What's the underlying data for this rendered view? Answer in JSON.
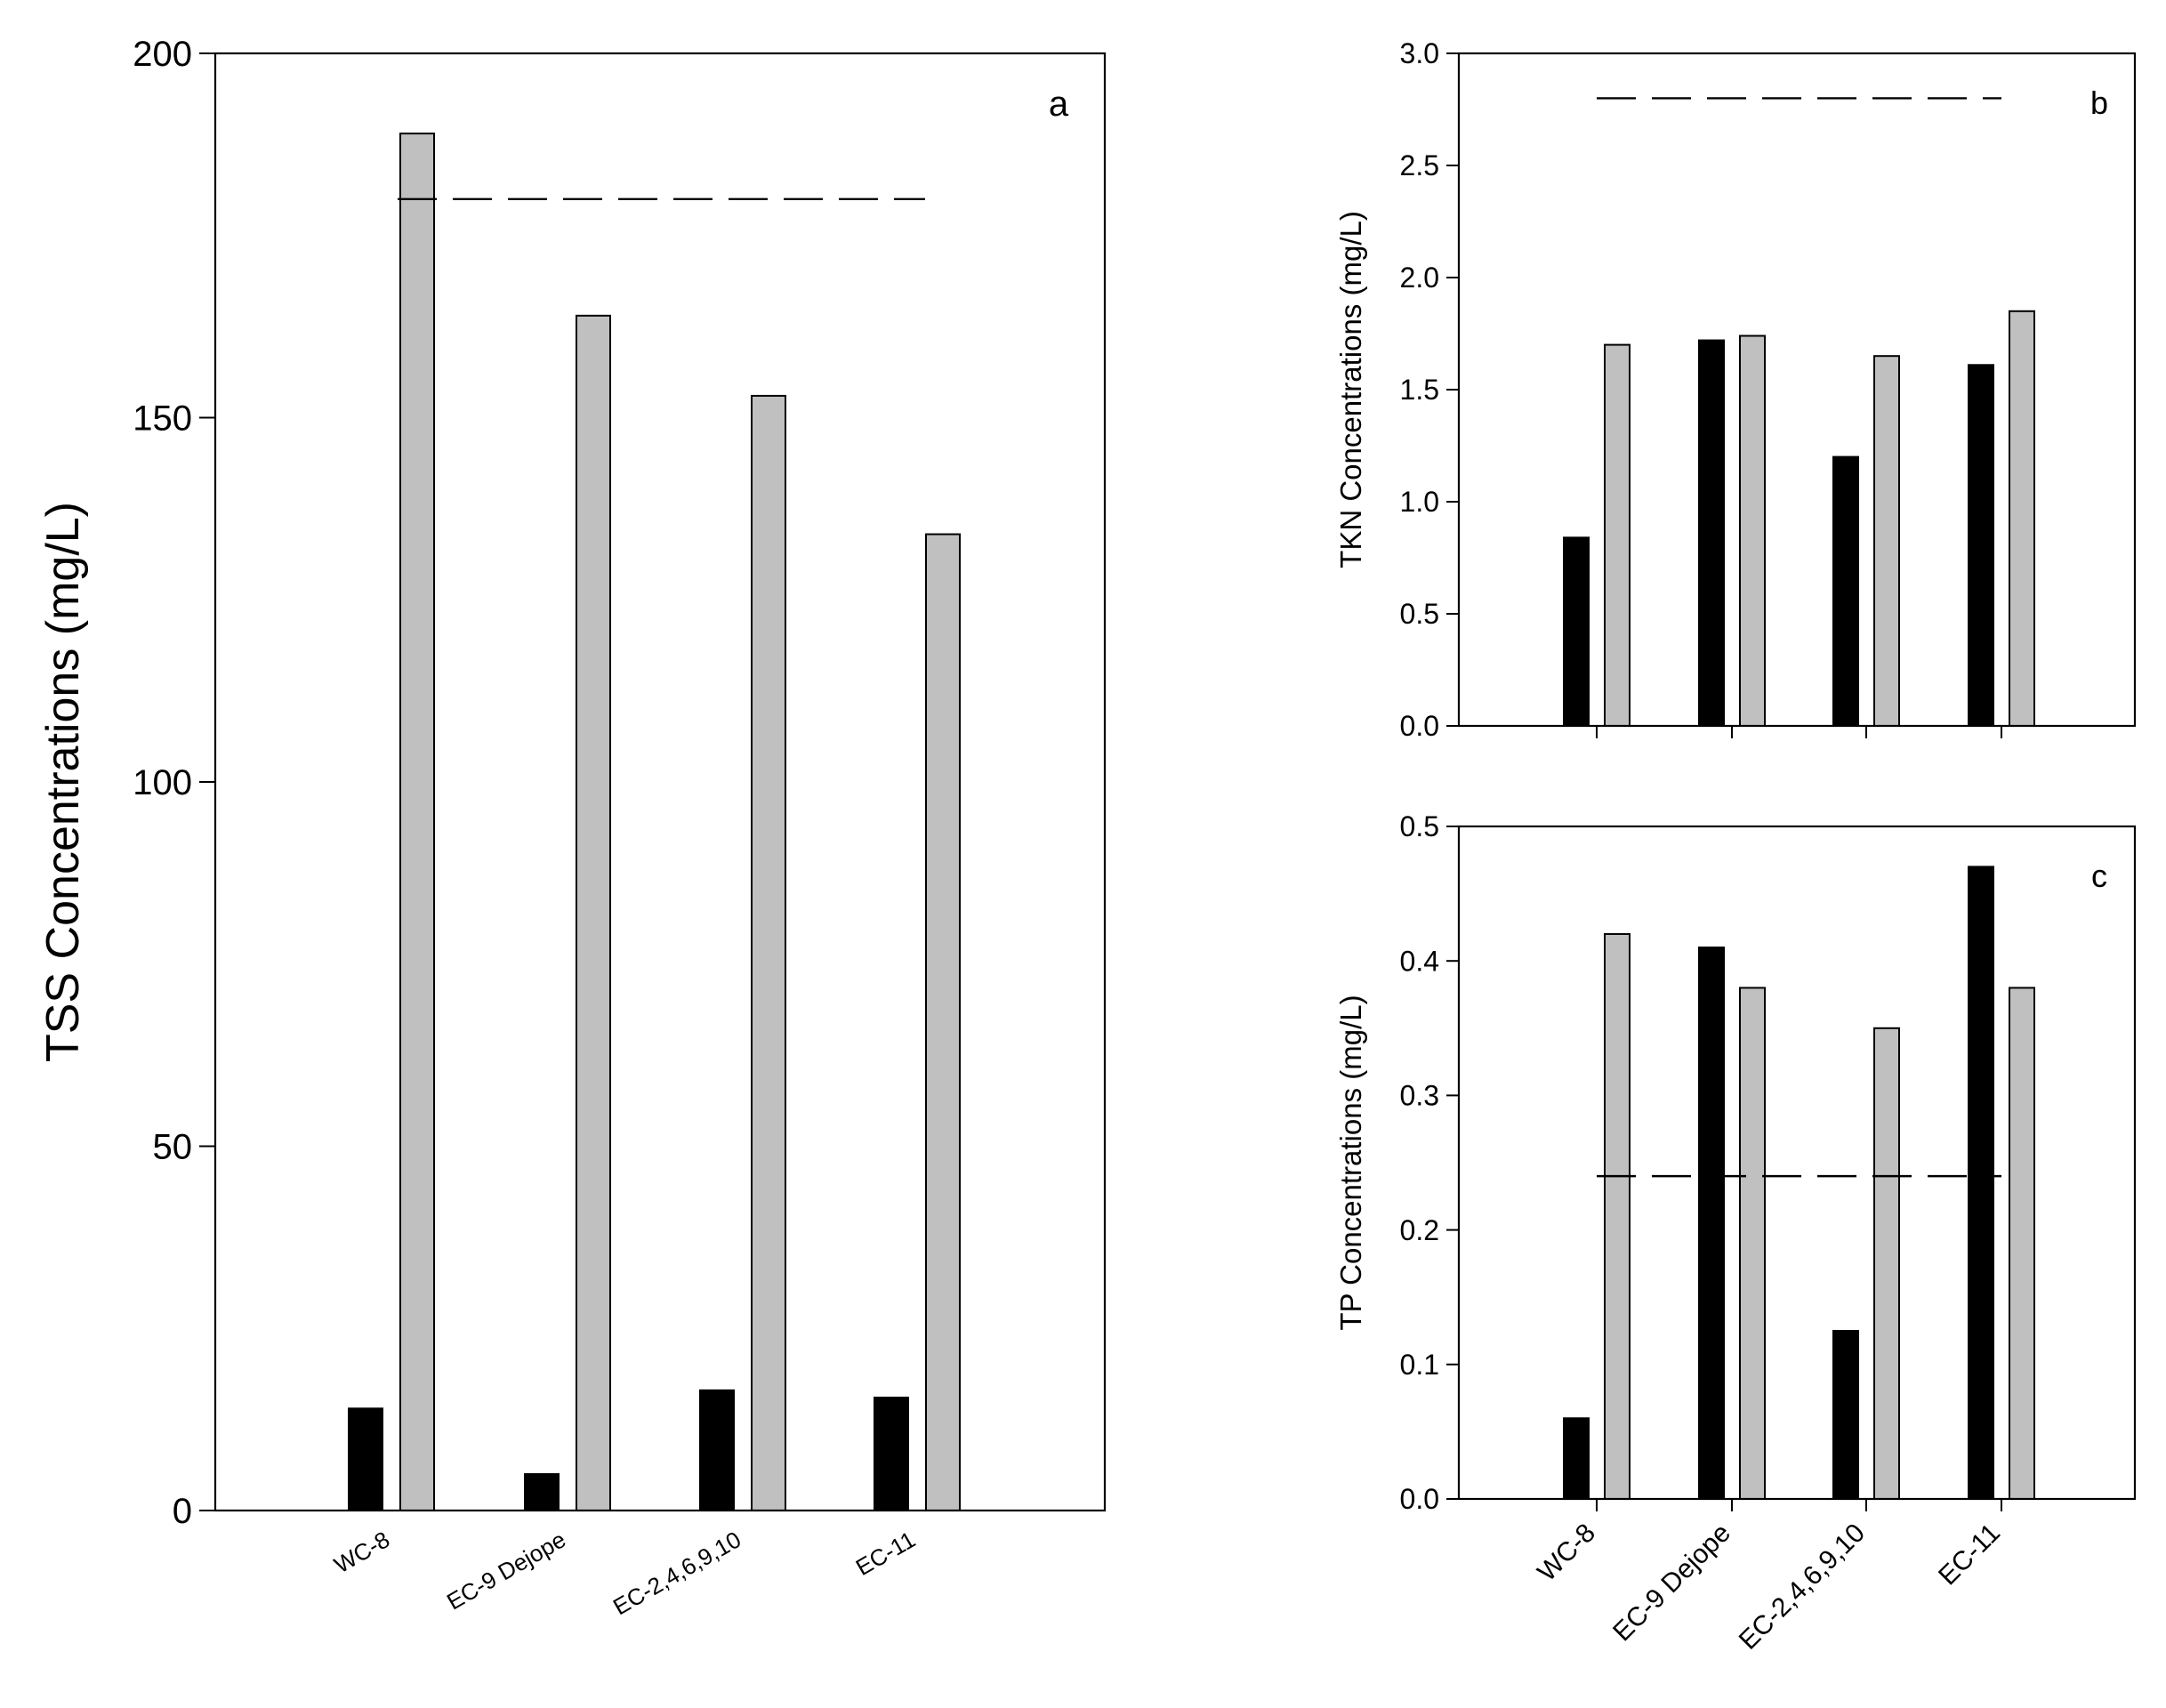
{
  "chart_data": [
    {
      "panel_id": "a",
      "type": "bar",
      "panel_label": "a",
      "categories": [
        "WC-8",
        "EC-9 Dejope",
        "EC-2,4,6,9,10",
        "EC-11"
      ],
      "series": [
        {
          "color": "#000000",
          "values": [
            14,
            5,
            16.5,
            15.5
          ]
        },
        {
          "color": "#c0c0c0",
          "values": [
            189,
            164,
            153,
            134
          ]
        }
      ],
      "reference_line": {
        "value": 180,
        "style": "dashed"
      },
      "ylabel": "TSS Concentrations (mg/L)",
      "ylim": [
        0,
        200
      ],
      "yticks": [
        "0",
        "50",
        "100",
        "150",
        "200"
      ],
      "grid": false
    },
    {
      "panel_id": "b",
      "type": "bar",
      "panel_label": "b",
      "categories": [
        "WC-8",
        "EC-9 Dejope",
        "EC-2,4,6,9,10",
        "EC-11"
      ],
      "series": [
        {
          "color": "#000000",
          "values": [
            0.84,
            1.72,
            1.2,
            1.61
          ]
        },
        {
          "color": "#c0c0c0",
          "values": [
            1.7,
            1.74,
            1.65,
            1.85
          ]
        }
      ],
      "reference_line": {
        "value": 2.8,
        "style": "dashed"
      },
      "ylabel": "TKN Concentrations (mg/L)",
      "ylim": [
        0,
        3.0
      ],
      "yticks": [
        "0.0",
        "0.5",
        "1.0",
        "1.5",
        "2.0",
        "2.5",
        "3.0"
      ],
      "grid": false
    },
    {
      "panel_id": "c",
      "type": "bar",
      "panel_label": "c",
      "categories": [
        "WC-8",
        "EC-9 Dejope",
        "EC-2,4,6,9,10",
        "EC-11"
      ],
      "series": [
        {
          "color": "#000000",
          "values": [
            0.06,
            0.41,
            0.125,
            0.47
          ]
        },
        {
          "color": "#c0c0c0",
          "values": [
            0.42,
            0.38,
            0.35,
            0.38
          ]
        }
      ],
      "reference_line": {
        "value": 0.24,
        "style": "dashed"
      },
      "ylabel": "TP Concentrations (mg/L)",
      "ylim": [
        0,
        0.5
      ],
      "yticks": [
        "0.0",
        "0.1",
        "0.2",
        "0.3",
        "0.4",
        "0.5"
      ],
      "grid": false
    }
  ]
}
